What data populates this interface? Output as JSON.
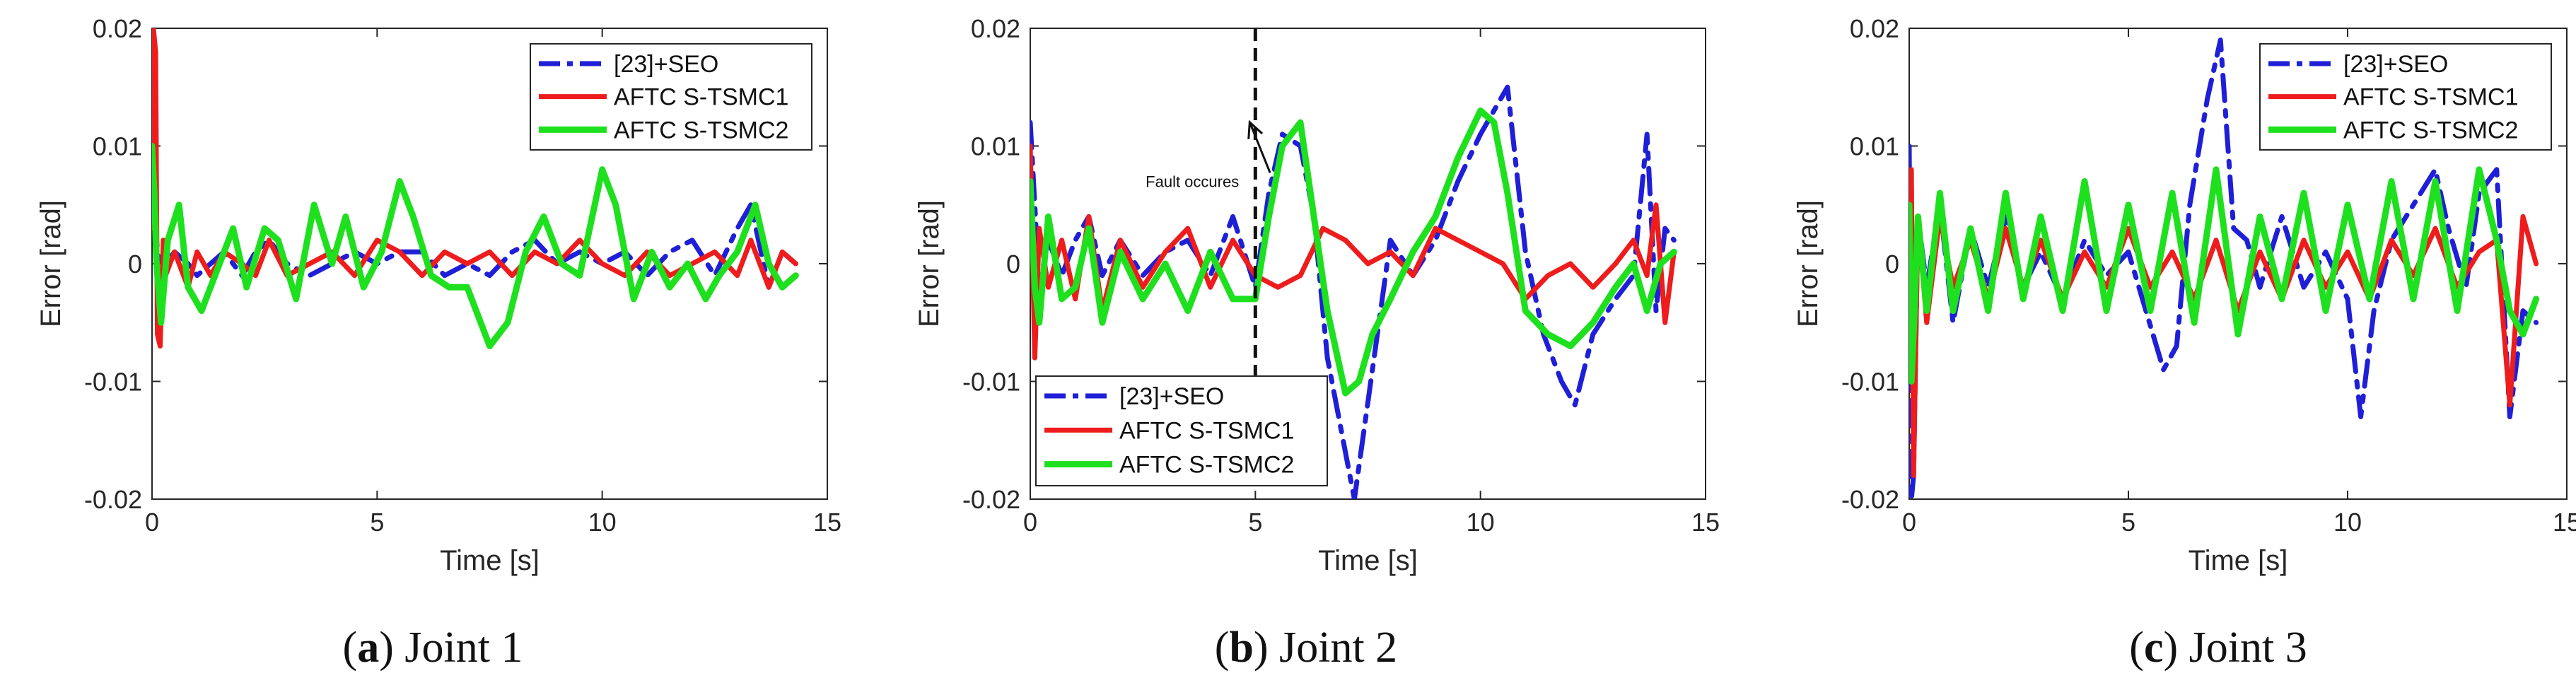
{
  "chart_data": [
    {
      "type": "line",
      "caption": {
        "tag": "a",
        "text": "Joint 1"
      },
      "xlabel": "Time [s]",
      "ylabel": "Error [rad]",
      "xlim": [
        0,
        15
      ],
      "ylim": [
        -0.02,
        0.02
      ],
      "xticks": [
        0,
        5,
        10,
        15
      ],
      "yticks": [
        -0.02,
        -0.01,
        0,
        0.01,
        0.02
      ],
      "xtick_labels": [
        "0",
        "5",
        "10",
        "15"
      ],
      "ytick_labels": [
        "-0.02",
        "-0.01",
        "0",
        "0.01",
        "0.02"
      ],
      "grid": false,
      "legend_position": "top-right",
      "series": [
        {
          "name": "[23]+SEO",
          "color": "#1f1fd8",
          "style": "dashdot",
          "x": [
            0,
            0.05,
            0.1,
            0.2,
            0.3,
            0.5,
            0.8,
            1,
            1.3,
            1.6,
            2,
            2.3,
            2.6,
            3,
            3.5,
            4,
            4.5,
            5,
            5.5,
            6,
            6.5,
            7,
            7.5,
            8,
            8.5,
            9,
            9.5,
            10,
            10.5,
            11,
            11.5,
            12,
            12.5,
            13,
            13.3,
            13.7,
            14,
            14.3
          ],
          "y": [
            0.008,
            0.006,
            0.002,
            -0.002,
            0,
            0.001,
            0,
            -0.001,
            0,
            0.001,
            -0.001,
            0.001,
            0.002,
            0,
            -0.001,
            0,
            0.001,
            0,
            0.001,
            0.001,
            -0.001,
            0,
            -0.001,
            0.001,
            0.002,
            0,
            0.001,
            0,
            0.001,
            -0.001,
            0.001,
            0.002,
            -0.001,
            0.003,
            0.005,
            -0.002,
            0.001,
            0
          ]
        },
        {
          "name": "AFTC S-TSMC1",
          "color": "#ee1c1c",
          "style": "solid",
          "x": [
            0,
            0.03,
            0.08,
            0.12,
            0.18,
            0.25,
            0.3,
            0.5,
            0.8,
            1,
            1.3,
            1.6,
            2,
            2.3,
            2.6,
            3,
            3.5,
            4,
            4.5,
            5,
            5.5,
            6,
            6.5,
            7,
            7.5,
            8,
            8.5,
            9,
            9.5,
            10,
            10.5,
            11,
            11.5,
            12,
            12.5,
            13,
            13.3,
            13.7,
            14,
            14.3
          ],
          "y": [
            0.003,
            0.02,
            0.018,
            -0.006,
            -0.007,
            0.002,
            -0.001,
            0.001,
            -0.002,
            0.001,
            -0.001,
            0.001,
            0,
            -0.001,
            0.002,
            -0.001,
            0,
            0.001,
            -0.001,
            0.002,
            0.001,
            -0.001,
            0.001,
            0,
            0.001,
            -0.001,
            0.001,
            0,
            0.002,
            0,
            -0.001,
            0.001,
            -0.001,
            0,
            0.001,
            -0.001,
            0.002,
            -0.002,
            0.001,
            0
          ]
        },
        {
          "name": "AFTC S-TSMC2",
          "color": "#1ee01e",
          "style": "solid",
          "x": [
            0,
            0.05,
            0.1,
            0.2,
            0.35,
            0.6,
            0.8,
            1.1,
            1.5,
            1.8,
            2.1,
            2.5,
            2.8,
            3.2,
            3.6,
            4,
            4.3,
            4.7,
            5.1,
            5.5,
            5.8,
            6.2,
            6.6,
            7,
            7.5,
            7.9,
            8.3,
            8.7,
            9.1,
            9.5,
            10,
            10.3,
            10.7,
            11.1,
            11.5,
            11.9,
            12.3,
            12.6,
            13,
            13.4,
            13.7,
            14,
            14.3
          ],
          "y": [
            0.01,
            0.006,
            0,
            -0.005,
            0.002,
            0.005,
            -0.002,
            -0.004,
            0,
            0.003,
            -0.002,
            0.003,
            0.002,
            -0.003,
            0.005,
            0,
            0.004,
            -0.002,
            0.001,
            0.007,
            0.004,
            -0.001,
            -0.002,
            -0.002,
            -0.007,
            -0.005,
            0.001,
            0.004,
            0,
            -0.001,
            0.008,
            0.005,
            -0.003,
            0.001,
            -0.002,
            0,
            -0.003,
            -0.001,
            0.001,
            0.005,
            0,
            -0.002,
            -0.001
          ]
        }
      ]
    },
    {
      "type": "line",
      "caption": {
        "tag": "b",
        "text": "Joint 2"
      },
      "xlabel": "Time [s]",
      "ylabel": "Error [rad]",
      "xlim": [
        0,
        15
      ],
      "ylim": [
        -0.02,
        0.02
      ],
      "xticks": [
        0,
        5,
        10,
        15
      ],
      "yticks": [
        -0.02,
        -0.01,
        0,
        0.01,
        0.02
      ],
      "xtick_labels": [
        "0",
        "5",
        "10",
        "15"
      ],
      "ytick_labels": [
        "-0.02",
        "-0.01",
        "0",
        "0.01",
        "0.02"
      ],
      "grid": false,
      "legend_position": "bottom-left",
      "annotation": {
        "text": "Fault occures",
        "x": 5,
        "target_y": 0.0125,
        "label_x": 3.6,
        "label_y": 0.007
      },
      "series": [
        {
          "name": "[23]+SEO",
          "color": "#1f1fd8",
          "style": "dashdot",
          "x": [
            0,
            0.1,
            0.2,
            0.4,
            0.7,
            1,
            1.3,
            1.6,
            2,
            2.5,
            3,
            3.5,
            4,
            4.5,
            5,
            5.3,
            5.6,
            6,
            6.3,
            6.6,
            6.9,
            7.2,
            7.6,
            8,
            8.5,
            9,
            9.5,
            10,
            10.3,
            10.6,
            11,
            11.4,
            11.8,
            12.1,
            12.5,
            13,
            13.4,
            13.7,
            13.9,
            14.1,
            14.3
          ],
          "y": [
            0.012,
            0.005,
            -0.002,
            0.002,
            -0.001,
            0.002,
            0.004,
            -0.001,
            0.002,
            -0.001,
            0.001,
            0.002,
            -0.001,
            0.004,
            -0.002,
            0.006,
            0.011,
            0.01,
            0.004,
            -0.008,
            -0.014,
            -0.02,
            -0.009,
            0.002,
            -0.001,
            0.002,
            0.007,
            0.011,
            0.013,
            0.015,
            0.001,
            -0.006,
            -0.01,
            -0.012,
            -0.006,
            -0.003,
            -0.001,
            0.011,
            -0.004,
            0.003,
            0.002
          ]
        },
        {
          "name": "AFTC S-TSMC1",
          "color": "#ee1c1c",
          "style": "solid",
          "x": [
            0,
            0.1,
            0.2,
            0.4,
            0.7,
            1,
            1.3,
            1.6,
            2,
            2.5,
            3,
            3.5,
            4,
            4.5,
            5,
            5.5,
            6,
            6.5,
            7,
            7.5,
            8,
            8.5,
            9,
            9.5,
            10,
            10.5,
            11,
            11.5,
            12,
            12.5,
            13,
            13.4,
            13.7,
            13.9,
            14.1,
            14.3
          ],
          "y": [
            0.01,
            -0.008,
            0.003,
            -0.002,
            0.002,
            -0.003,
            0.004,
            -0.004,
            0.002,
            -0.002,
            0.001,
            0.003,
            -0.002,
            0.002,
            -0.001,
            -0.002,
            -0.001,
            0.003,
            0.002,
            0,
            0.001,
            -0.001,
            0.003,
            0.002,
            0.001,
            0,
            -0.003,
            -0.001,
            0,
            -0.002,
            0,
            0.002,
            -0.001,
            0.005,
            -0.005,
            0.001
          ]
        },
        {
          "name": "AFTC S-TSMC2",
          "color": "#1ee01e",
          "style": "solid",
          "x": [
            0,
            0.1,
            0.2,
            0.4,
            0.7,
            1,
            1.3,
            1.6,
            2,
            2.5,
            3,
            3.5,
            4,
            4.5,
            5,
            5.3,
            5.6,
            6,
            6.3,
            6.6,
            7,
            7.3,
            7.6,
            8,
            8.5,
            9,
            9.5,
            10,
            10.3,
            10.6,
            11,
            11.5,
            12,
            12.5,
            13,
            13.4,
            13.7,
            14,
            14.3
          ],
          "y": [
            0.007,
            -0.002,
            -0.005,
            0.004,
            -0.003,
            -0.002,
            0.003,
            -0.005,
            0.001,
            -0.003,
            0,
            -0.004,
            0.001,
            -0.003,
            -0.003,
            0.004,
            0.01,
            0.012,
            0.004,
            -0.004,
            -0.011,
            -0.01,
            -0.006,
            -0.003,
            0.001,
            0.004,
            0.009,
            0.013,
            0.012,
            0.006,
            -0.004,
            -0.006,
            -0.007,
            -0.005,
            -0.002,
            0,
            -0.004,
            0,
            0.001
          ]
        }
      ]
    },
    {
      "type": "line",
      "caption": {
        "tag": "c",
        "text": "Joint 3"
      },
      "xlabel": "Time [s]",
      "ylabel": "Error [rad]",
      "xlim": [
        0,
        15
      ],
      "ylim": [
        -0.02,
        0.02
      ],
      "xticks": [
        0,
        5,
        10,
        15
      ],
      "yticks": [
        -0.02,
        -0.01,
        0,
        0.01,
        0.02
      ],
      "xtick_labels": [
        "0",
        "5",
        "10",
        "15"
      ],
      "ytick_labels": [
        "-0.02",
        "-0.01",
        "0",
        "0.01",
        "0.02"
      ],
      "grid": false,
      "legend_position": "top-right",
      "series": [
        {
          "name": "[23]+SEO",
          "color": "#1f1fd8",
          "style": "dashdot",
          "x": [
            0,
            0.05,
            0.1,
            0.2,
            0.4,
            0.7,
            1,
            1.4,
            1.8,
            2.2,
            2.6,
            3,
            3.5,
            4,
            4.5,
            5,
            5.4,
            5.8,
            6.1,
            6.4,
            6.8,
            7.1,
            7.4,
            7.7,
            8,
            8.5,
            9,
            9.5,
            10,
            10.3,
            10.6,
            11,
            11.5,
            12,
            12.3,
            12.7,
            13,
            13.4,
            13.7,
            14,
            14.3
          ],
          "y": [
            0.01,
            -0.02,
            -0.018,
            0.004,
            -0.002,
            0.005,
            -0.005,
            0.003,
            -0.002,
            0.004,
            -0.002,
            0.001,
            -0.003,
            0.002,
            -0.001,
            0.001,
            -0.004,
            -0.009,
            -0.007,
            0.005,
            0.014,
            0.019,
            0.003,
            0.002,
            -0.002,
            0.004,
            -0.002,
            0.001,
            -0.003,
            -0.013,
            -0.004,
            0.002,
            0.005,
            0.008,
            0.003,
            -0.002,
            0.006,
            0.008,
            -0.013,
            -0.004,
            -0.005
          ]
        },
        {
          "name": "AFTC S-TSMC1",
          "color": "#ee1c1c",
          "style": "solid",
          "x": [
            0,
            0.05,
            0.1,
            0.2,
            0.4,
            0.7,
            1,
            1.4,
            1.8,
            2.2,
            2.6,
            3,
            3.5,
            4,
            4.5,
            5,
            5.5,
            6,
            6.5,
            7,
            7.5,
            8,
            8.5,
            9,
            9.5,
            10,
            10.5,
            11,
            11.5,
            12,
            12.5,
            13,
            13.4,
            13.7,
            14,
            14.3
          ],
          "y": [
            0.003,
            0.008,
            -0.018,
            0.004,
            -0.005,
            0.004,
            -0.002,
            0.002,
            -0.003,
            0.003,
            -0.002,
            0.002,
            -0.003,
            0.001,
            -0.002,
            0.003,
            -0.002,
            0.001,
            -0.003,
            0.002,
            -0.004,
            0.001,
            -0.003,
            0.002,
            -0.002,
            0.001,
            -0.003,
            0.002,
            -0.001,
            0.003,
            -0.002,
            0.001,
            0.002,
            -0.012,
            0.004,
            0
          ]
        },
        {
          "name": "AFTC S-TSMC2",
          "color": "#1ee01e",
          "style": "solid",
          "x": [
            0,
            0.05,
            0.1,
            0.2,
            0.4,
            0.7,
            1,
            1.4,
            1.8,
            2.2,
            2.6,
            3,
            3.5,
            4,
            4.5,
            5,
            5.5,
            6,
            6.5,
            7,
            7.5,
            8,
            8.5,
            9,
            9.5,
            10,
            10.5,
            11,
            11.5,
            12,
            12.5,
            13,
            13.4,
            13.7,
            14,
            14.3
          ],
          "y": [
            0.005,
            -0.01,
            -0.006,
            0.004,
            -0.004,
            0.006,
            -0.004,
            0.003,
            -0.004,
            0.006,
            -0.003,
            0.004,
            -0.004,
            0.007,
            -0.004,
            0.005,
            -0.004,
            0.006,
            -0.005,
            0.008,
            -0.006,
            0.004,
            -0.003,
            0.006,
            -0.004,
            0.005,
            -0.003,
            0.007,
            -0.003,
            0.007,
            -0.004,
            0.008,
            0.002,
            -0.004,
            -0.006,
            -0.003
          ]
        }
      ]
    }
  ]
}
